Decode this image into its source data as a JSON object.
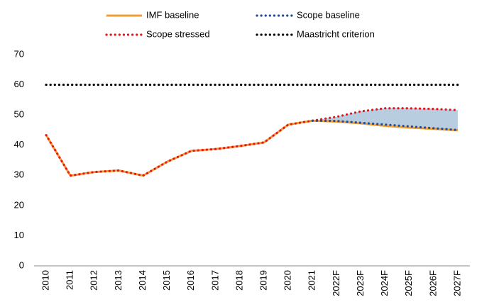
{
  "chart_data": {
    "type": "line",
    "categories": [
      "2010",
      "2011",
      "2012",
      "2013",
      "2014",
      "2015",
      "2016",
      "2017",
      "2018",
      "2019",
      "2020",
      "2021",
      "2022F",
      "2023F",
      "2024F",
      "2025F",
      "2026F",
      "2027F"
    ],
    "series": [
      {
        "name": "IMF baseline",
        "color": "#f39c34",
        "style": "solid",
        "values": [
          43.3,
          29.9,
          31.1,
          31.6,
          29.9,
          34.5,
          38.1,
          38.7,
          39.7,
          40.9,
          46.8,
          48.1,
          47.8,
          47.2,
          46.4,
          45.8,
          45.4,
          44.9
        ]
      },
      {
        "name": "Scope stressed",
        "color": "#e8141b",
        "style": "dotted",
        "values": [
          43.3,
          29.9,
          31.1,
          31.6,
          29.9,
          34.5,
          38.1,
          38.7,
          39.7,
          40.9,
          46.8,
          48.1,
          49.4,
          51.2,
          52.2,
          52.2,
          52.0,
          51.6
        ]
      },
      {
        "name": "Scope baseline",
        "color": "#1f4e9c",
        "style": "dotted",
        "values": [
          null,
          null,
          null,
          null,
          null,
          null,
          null,
          null,
          null,
          null,
          null,
          48.1,
          48.0,
          47.4,
          46.8,
          46.2,
          45.6,
          45.0
        ]
      },
      {
        "name": "Maastricht criterion",
        "color": "#000000",
        "style": "dotted",
        "values": [
          60,
          60,
          60,
          60,
          60,
          60,
          60,
          60,
          60,
          60,
          60,
          60,
          60,
          60,
          60,
          60,
          60,
          60
        ]
      }
    ],
    "band_color": "#b9cde0",
    "ylim": [
      0,
      70
    ],
    "yticks": [
      0,
      10,
      20,
      30,
      40,
      50,
      60,
      70
    ],
    "grid": false
  }
}
